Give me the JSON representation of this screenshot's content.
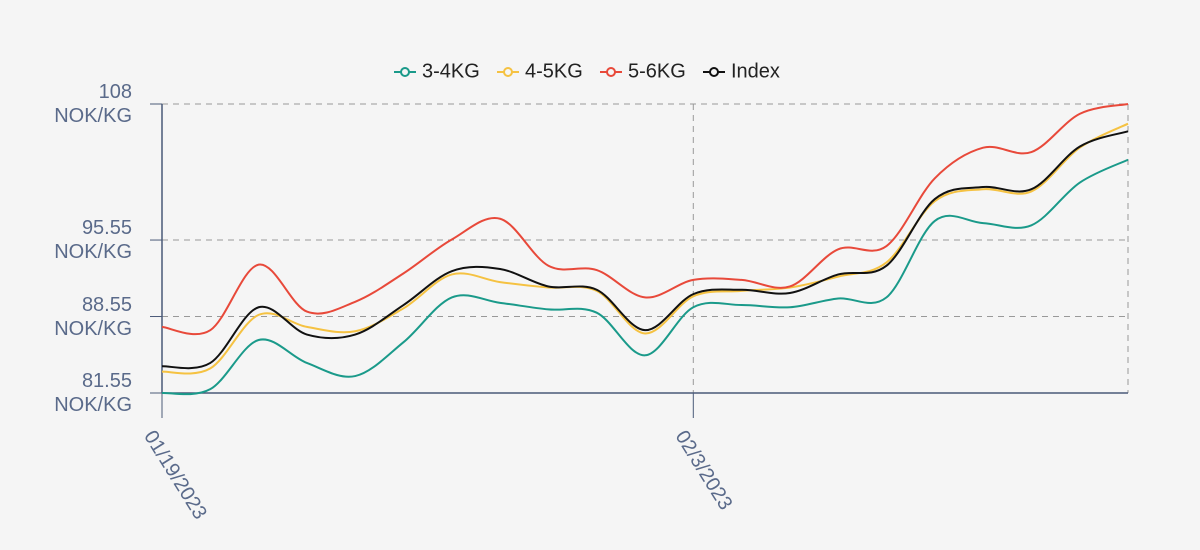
{
  "chart_data": {
    "type": "line",
    "categories": [
      "01/19/2023",
      null,
      null,
      null,
      null,
      null,
      null,
      null,
      null,
      null,
      null,
      "02/3/2023",
      null,
      null,
      null,
      null,
      null,
      null,
      null,
      null,
      null
    ],
    "series": [
      {
        "name": "3-4KG",
        "color": "#1a9a8a",
        "values": [
          81.55,
          81.9,
          86.4,
          84.3,
          83.1,
          86.2,
          90.3,
          89.8,
          89.2,
          88.9,
          85.0,
          89.4,
          89.6,
          89.4,
          90.2,
          90.3,
          97.3,
          97.1,
          96.9,
          100.8,
          102.9
        ]
      },
      {
        "name": "4-5KG",
        "color": "#f5c242",
        "values": [
          83.5,
          83.8,
          88.7,
          87.6,
          87.2,
          89.3,
          92.4,
          91.7,
          91.2,
          90.9,
          87.0,
          90.4,
          90.9,
          91.2,
          92.2,
          93.5,
          99.1,
          100.2,
          100.0,
          104.0,
          106.2
        ]
      },
      {
        "name": "5-6KG",
        "color": "#e8493a",
        "values": [
          87.6,
          87.3,
          93.3,
          89.0,
          89.9,
          92.5,
          95.6,
          97.5,
          93.2,
          92.8,
          90.3,
          91.9,
          91.9,
          91.3,
          94.7,
          95.0,
          101.2,
          104.0,
          103.6,
          107.1,
          108.0
        ]
      },
      {
        "name": "Index",
        "color": "#111111",
        "values": [
          84.0,
          84.3,
          89.4,
          86.9,
          86.9,
          89.6,
          92.7,
          92.9,
          91.3,
          91.0,
          87.3,
          90.6,
          91.0,
          90.7,
          92.4,
          93.2,
          99.3,
          100.4,
          100.2,
          104.1,
          105.5
        ]
      }
    ],
    "ylim": [
      81.55,
      108
    ],
    "yticks": [
      {
        "value": 81.55,
        "label": "81.55 NOK/KG"
      },
      {
        "value": 88.55,
        "label": "88.55 NOK/KG"
      },
      {
        "value": 95.55,
        "label": "95.55 NOK/KG"
      },
      {
        "value": 108,
        "label": "108 NOK/KG"
      }
    ],
    "grid": true,
    "legend": "top"
  }
}
